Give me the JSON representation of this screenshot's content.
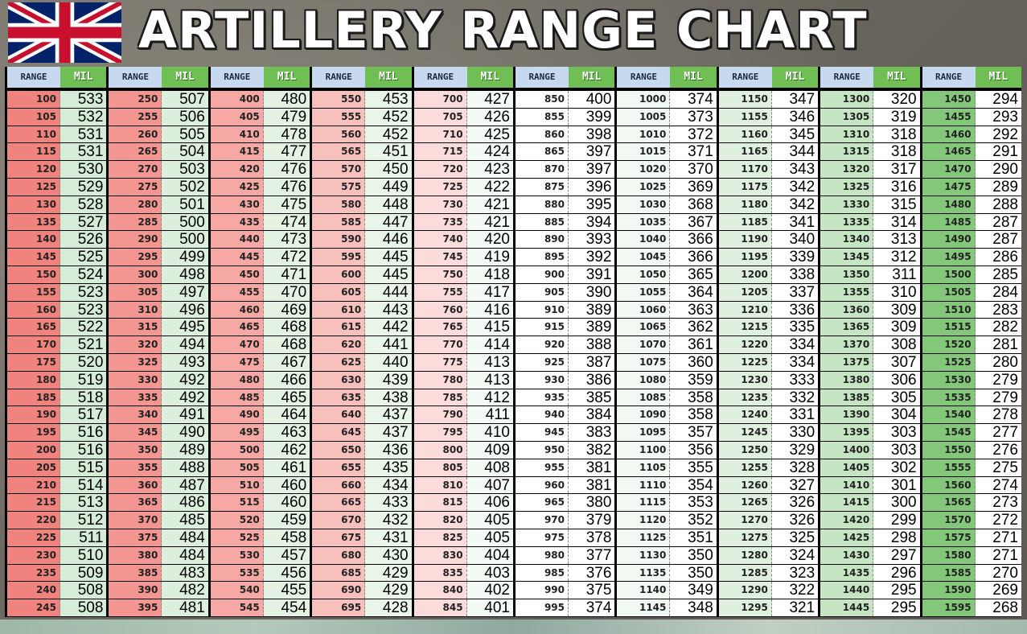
{
  "title": "ARTILLERY RANGE CHART",
  "header": {
    "range_label": "RANGE",
    "mil_label": "MIL"
  },
  "columns": [
    {
      "range_color": "#f1837e",
      "mil_color": "#d5ecd6",
      "rows": [
        [
          100,
          533
        ],
        [
          105,
          532
        ],
        [
          110,
          531
        ],
        [
          115,
          531
        ],
        [
          120,
          530
        ],
        [
          125,
          529
        ],
        [
          130,
          528
        ],
        [
          135,
          527
        ],
        [
          140,
          526
        ],
        [
          145,
          525
        ],
        [
          150,
          524
        ],
        [
          155,
          523
        ],
        [
          160,
          523
        ],
        [
          165,
          522
        ],
        [
          170,
          521
        ],
        [
          175,
          520
        ],
        [
          180,
          519
        ],
        [
          185,
          518
        ],
        [
          190,
          517
        ],
        [
          195,
          516
        ],
        [
          200,
          516
        ],
        [
          205,
          515
        ],
        [
          210,
          514
        ],
        [
          215,
          513
        ],
        [
          220,
          512
        ],
        [
          225,
          511
        ],
        [
          230,
          510
        ],
        [
          235,
          509
        ],
        [
          240,
          508
        ],
        [
          245,
          508
        ]
      ]
    },
    {
      "range_color": "#f39590",
      "mil_color": "#dcefdd",
      "rows": [
        [
          250,
          507
        ],
        [
          255,
          506
        ],
        [
          260,
          505
        ],
        [
          265,
          504
        ],
        [
          270,
          503
        ],
        [
          275,
          502
        ],
        [
          280,
          501
        ],
        [
          285,
          500
        ],
        [
          290,
          500
        ],
        [
          295,
          499
        ],
        [
          300,
          498
        ],
        [
          305,
          497
        ],
        [
          310,
          496
        ],
        [
          315,
          495
        ],
        [
          320,
          494
        ],
        [
          325,
          493
        ],
        [
          330,
          492
        ],
        [
          335,
          492
        ],
        [
          340,
          491
        ],
        [
          345,
          490
        ],
        [
          350,
          489
        ],
        [
          355,
          488
        ],
        [
          360,
          487
        ],
        [
          365,
          486
        ],
        [
          370,
          485
        ],
        [
          375,
          484
        ],
        [
          380,
          484
        ],
        [
          385,
          483
        ],
        [
          390,
          482
        ],
        [
          395,
          481
        ]
      ]
    },
    {
      "range_color": "#f5a8a4",
      "mil_color": "#e3f2e3",
      "rows": [
        [
          400,
          480
        ],
        [
          405,
          479
        ],
        [
          410,
          478
        ],
        [
          415,
          477
        ],
        [
          420,
          476
        ],
        [
          425,
          476
        ],
        [
          430,
          475
        ],
        [
          435,
          474
        ],
        [
          440,
          473
        ],
        [
          445,
          472
        ],
        [
          450,
          471
        ],
        [
          455,
          470
        ],
        [
          460,
          469
        ],
        [
          465,
          468
        ],
        [
          470,
          468
        ],
        [
          475,
          467
        ],
        [
          480,
          466
        ],
        [
          485,
          465
        ],
        [
          490,
          464
        ],
        [
          495,
          463
        ],
        [
          500,
          462
        ],
        [
          505,
          461
        ],
        [
          510,
          460
        ],
        [
          515,
          460
        ],
        [
          520,
          459
        ],
        [
          525,
          458
        ],
        [
          530,
          457
        ],
        [
          535,
          456
        ],
        [
          540,
          455
        ],
        [
          545,
          454
        ]
      ]
    },
    {
      "range_color": "#f8c0bd",
      "mil_color": "#eaf5ea",
      "rows": [
        [
          550,
          453
        ],
        [
          555,
          452
        ],
        [
          560,
          452
        ],
        [
          565,
          451
        ],
        [
          570,
          450
        ],
        [
          575,
          449
        ],
        [
          580,
          448
        ],
        [
          585,
          447
        ],
        [
          590,
          446
        ],
        [
          595,
          445
        ],
        [
          600,
          445
        ],
        [
          605,
          444
        ],
        [
          610,
          443
        ],
        [
          615,
          442
        ],
        [
          620,
          441
        ],
        [
          625,
          440
        ],
        [
          630,
          439
        ],
        [
          635,
          438
        ],
        [
          640,
          437
        ],
        [
          645,
          437
        ],
        [
          650,
          436
        ],
        [
          655,
          435
        ],
        [
          660,
          434
        ],
        [
          665,
          433
        ],
        [
          670,
          432
        ],
        [
          675,
          431
        ],
        [
          680,
          430
        ],
        [
          685,
          429
        ],
        [
          690,
          429
        ],
        [
          695,
          428
        ]
      ]
    },
    {
      "range_color": "#fbdcdb",
      "mil_color": "#f4faf4",
      "rows": [
        [
          700,
          427
        ],
        [
          705,
          426
        ],
        [
          710,
          425
        ],
        [
          715,
          424
        ],
        [
          720,
          423
        ],
        [
          725,
          422
        ],
        [
          730,
          421
        ],
        [
          735,
          421
        ],
        [
          740,
          420
        ],
        [
          745,
          419
        ],
        [
          750,
          418
        ],
        [
          755,
          417
        ],
        [
          760,
          416
        ],
        [
          765,
          415
        ],
        [
          770,
          414
        ],
        [
          775,
          413
        ],
        [
          780,
          413
        ],
        [
          785,
          412
        ],
        [
          790,
          411
        ],
        [
          795,
          410
        ],
        [
          800,
          409
        ],
        [
          805,
          408
        ],
        [
          810,
          407
        ],
        [
          815,
          406
        ],
        [
          820,
          405
        ],
        [
          825,
          405
        ],
        [
          830,
          404
        ],
        [
          835,
          403
        ],
        [
          840,
          402
        ],
        [
          845,
          401
        ]
      ]
    },
    {
      "range_color": "#ffffff",
      "mil_color": "#ffffff",
      "rows": [
        [
          850,
          400
        ],
        [
          855,
          399
        ],
        [
          860,
          398
        ],
        [
          865,
          397
        ],
        [
          870,
          397
        ],
        [
          875,
          396
        ],
        [
          880,
          395
        ],
        [
          885,
          394
        ],
        [
          890,
          393
        ],
        [
          895,
          392
        ],
        [
          900,
          391
        ],
        [
          905,
          390
        ],
        [
          910,
          389
        ],
        [
          915,
          389
        ],
        [
          920,
          388
        ],
        [
          925,
          387
        ],
        [
          930,
          386
        ],
        [
          935,
          385
        ],
        [
          940,
          384
        ],
        [
          945,
          383
        ],
        [
          950,
          382
        ],
        [
          955,
          381
        ],
        [
          960,
          381
        ],
        [
          965,
          380
        ],
        [
          970,
          379
        ],
        [
          975,
          378
        ],
        [
          980,
          377
        ],
        [
          985,
          376
        ],
        [
          990,
          375
        ],
        [
          995,
          374
        ]
      ]
    },
    {
      "range_color": "#f2f9f2",
      "mil_color": "#ffffff",
      "rows": [
        [
          1000,
          374
        ],
        [
          1005,
          373
        ],
        [
          1010,
          372
        ],
        [
          1015,
          371
        ],
        [
          1020,
          370
        ],
        [
          1025,
          369
        ],
        [
          1030,
          368
        ],
        [
          1035,
          367
        ],
        [
          1040,
          366
        ],
        [
          1045,
          366
        ],
        [
          1050,
          365
        ],
        [
          1055,
          364
        ],
        [
          1060,
          363
        ],
        [
          1065,
          362
        ],
        [
          1070,
          361
        ],
        [
          1075,
          360
        ],
        [
          1080,
          359
        ],
        [
          1085,
          358
        ],
        [
          1090,
          358
        ],
        [
          1095,
          357
        ],
        [
          1100,
          356
        ],
        [
          1105,
          355
        ],
        [
          1110,
          354
        ],
        [
          1115,
          353
        ],
        [
          1120,
          352
        ],
        [
          1125,
          351
        ],
        [
          1130,
          350
        ],
        [
          1135,
          350
        ],
        [
          1140,
          349
        ],
        [
          1145,
          348
        ]
      ]
    },
    {
      "range_color": "#dff0df",
      "mil_color": "#ffffff",
      "rows": [
        [
          1150,
          347
        ],
        [
          1155,
          346
        ],
        [
          1160,
          345
        ],
        [
          1165,
          344
        ],
        [
          1170,
          343
        ],
        [
          1175,
          342
        ],
        [
          1180,
          342
        ],
        [
          1185,
          341
        ],
        [
          1190,
          340
        ],
        [
          1195,
          339
        ],
        [
          1200,
          338
        ],
        [
          1205,
          337
        ],
        [
          1210,
          336
        ],
        [
          1215,
          335
        ],
        [
          1220,
          334
        ],
        [
          1225,
          334
        ],
        [
          1230,
          333
        ],
        [
          1235,
          332
        ],
        [
          1240,
          331
        ],
        [
          1245,
          330
        ],
        [
          1250,
          329
        ],
        [
          1255,
          328
        ],
        [
          1260,
          327
        ],
        [
          1265,
          326
        ],
        [
          1270,
          326
        ],
        [
          1275,
          325
        ],
        [
          1280,
          324
        ],
        [
          1285,
          323
        ],
        [
          1290,
          322
        ],
        [
          1295,
          321
        ]
      ]
    },
    {
      "range_color": "#c5e5c3",
      "mil_color": "#ffffff",
      "rows": [
        [
          1300,
          320
        ],
        [
          1305,
          319
        ],
        [
          1310,
          318
        ],
        [
          1315,
          318
        ],
        [
          1320,
          317
        ],
        [
          1325,
          316
        ],
        [
          1330,
          315
        ],
        [
          1335,
          314
        ],
        [
          1340,
          313
        ],
        [
          1345,
          312
        ],
        [
          1350,
          311
        ],
        [
          1355,
          310
        ],
        [
          1360,
          309
        ],
        [
          1365,
          309
        ],
        [
          1370,
          308
        ],
        [
          1375,
          307
        ],
        [
          1380,
          306
        ],
        [
          1385,
          305
        ],
        [
          1390,
          304
        ],
        [
          1395,
          303
        ],
        [
          1400,
          303
        ],
        [
          1405,
          302
        ],
        [
          1410,
          301
        ],
        [
          1415,
          300
        ],
        [
          1420,
          299
        ],
        [
          1425,
          298
        ],
        [
          1430,
          297
        ],
        [
          1435,
          296
        ],
        [
          1440,
          295
        ],
        [
          1445,
          295
        ]
      ]
    },
    {
      "range_color": "#84c77a",
      "mil_color": "#ffffff",
      "rows": [
        [
          1450,
          294
        ],
        [
          1455,
          293
        ],
        [
          1460,
          292
        ],
        [
          1465,
          291
        ],
        [
          1470,
          290
        ],
        [
          1475,
          289
        ],
        [
          1480,
          288
        ],
        [
          1485,
          287
        ],
        [
          1490,
          287
        ],
        [
          1495,
          286
        ],
        [
          1500,
          285
        ],
        [
          1505,
          284
        ],
        [
          1510,
          283
        ],
        [
          1515,
          282
        ],
        [
          1520,
          281
        ],
        [
          1525,
          280
        ],
        [
          1530,
          279
        ],
        [
          1535,
          279
        ],
        [
          1540,
          278
        ],
        [
          1545,
          277
        ],
        [
          1550,
          276
        ],
        [
          1555,
          275
        ],
        [
          1560,
          274
        ],
        [
          1565,
          273
        ],
        [
          1570,
          272
        ],
        [
          1575,
          271
        ],
        [
          1580,
          271
        ],
        [
          1585,
          270
        ],
        [
          1590,
          269
        ],
        [
          1595,
          268
        ]
      ]
    }
  ]
}
